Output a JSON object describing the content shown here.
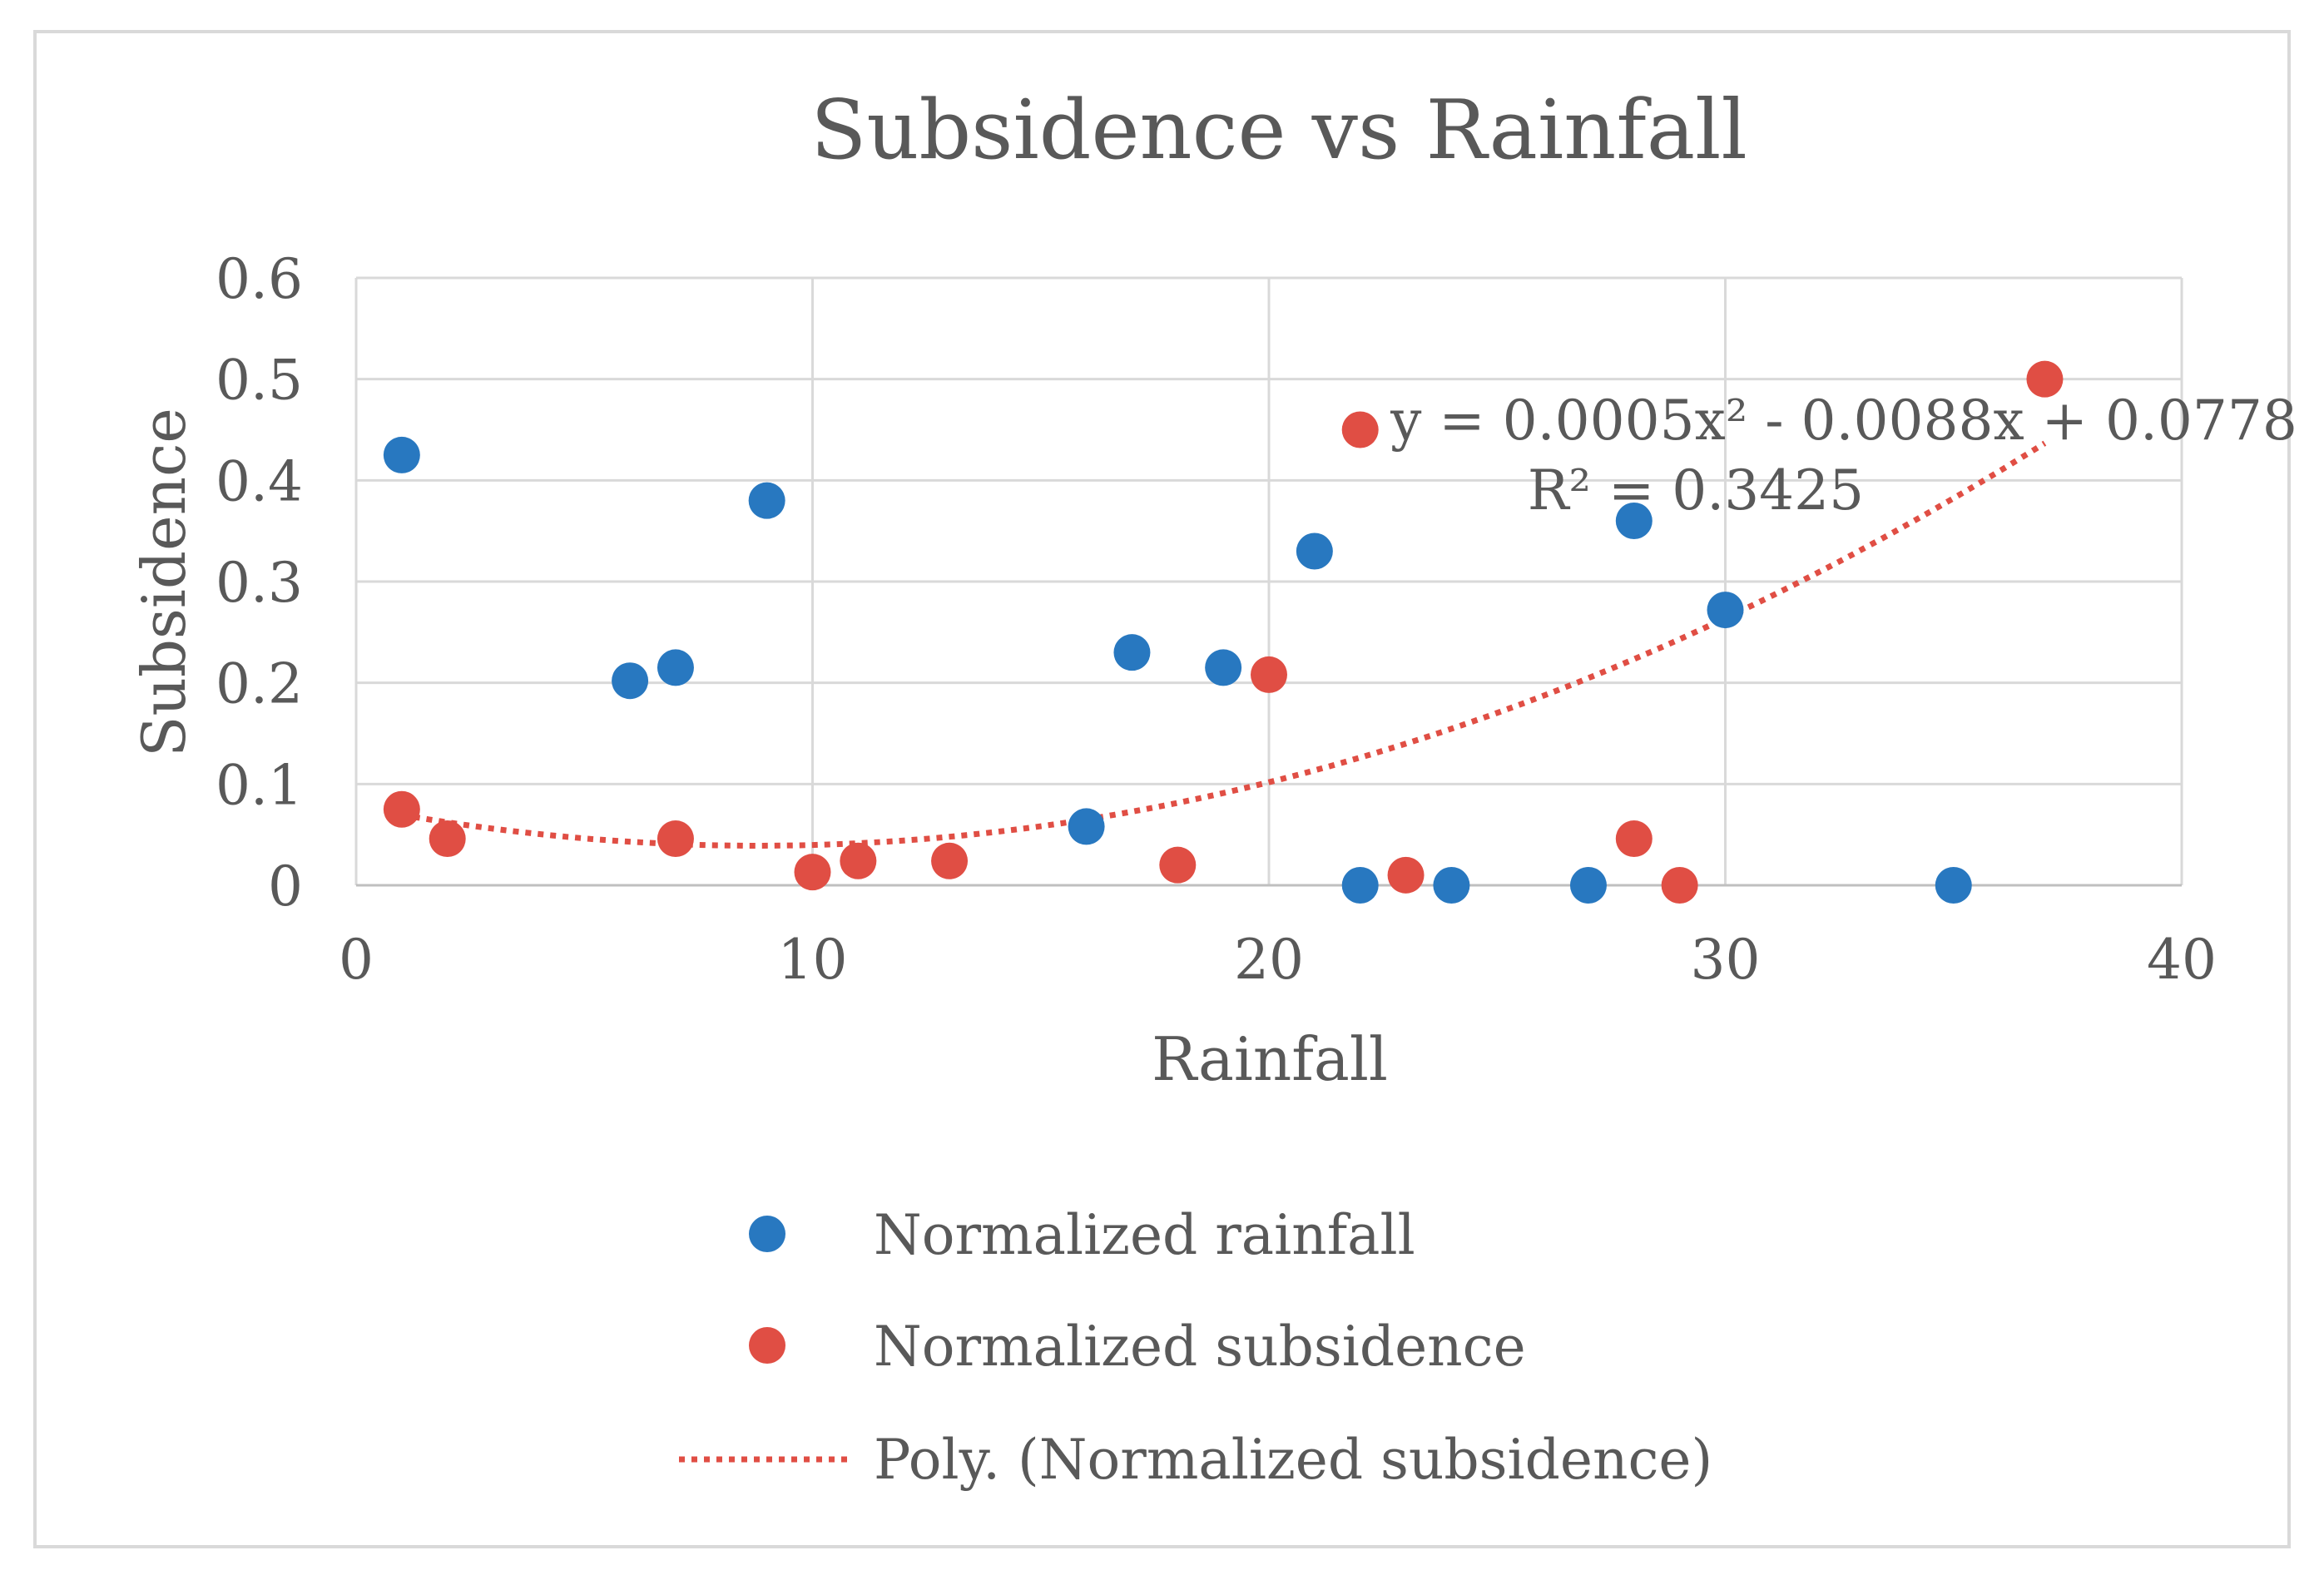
{
  "chart_data": {
    "type": "scatter",
    "title": "Subsidence vs Rainfall",
    "xlabel": "Rainfall",
    "ylabel": "Subsidence",
    "xlim": [
      0,
      40
    ],
    "ylim": [
      0,
      0.6
    ],
    "xticks": [
      "0",
      "10",
      "20",
      "30",
      "40"
    ],
    "yticks": [
      "0",
      "0.1",
      "0.2",
      "0.3",
      "0.4",
      "0.5",
      "0.6"
    ],
    "grid": true,
    "legend_position": "bottom",
    "series": [
      {
        "name": "Normalized rainfall",
        "color": "#2878c0",
        "points": [
          [
            1,
            0.425
          ],
          [
            6,
            0.202
          ],
          [
            7,
            0.215
          ],
          [
            9,
            0.38
          ],
          [
            16,
            0.058
          ],
          [
            17,
            0.23
          ],
          [
            19,
            0.215
          ],
          [
            21,
            0.33
          ],
          [
            22,
            0.0
          ],
          [
            24,
            0.0
          ],
          [
            27,
            0.0
          ],
          [
            28,
            0.36
          ],
          [
            30,
            0.272
          ],
          [
            35,
            0.0
          ]
        ]
      },
      {
        "name": "Normalized subsidence",
        "color": "#e04e44",
        "points": [
          [
            1,
            0.075
          ],
          [
            2,
            0.046
          ],
          [
            7,
            0.046
          ],
          [
            10,
            0.013
          ],
          [
            11,
            0.024
          ],
          [
            13,
            0.024
          ],
          [
            18,
            0.02
          ],
          [
            20,
            0.208
          ],
          [
            22,
            0.45
          ],
          [
            23,
            0.01
          ],
          [
            28,
            0.046
          ],
          [
            29,
            0.0
          ],
          [
            37,
            0.5
          ]
        ]
      }
    ],
    "trendline": {
      "name": "Poly. (Normalized subsidence)",
      "type": "polynomial",
      "order": 2,
      "coefficients": [
        0.0005,
        -0.0088,
        0.0778
      ],
      "x_range": [
        1,
        37
      ],
      "color": "#e04e44",
      "equation_line1": "y = 0.0005x² - 0.0088x + 0.0778",
      "equation_line2": "R² = 0.3425"
    }
  }
}
